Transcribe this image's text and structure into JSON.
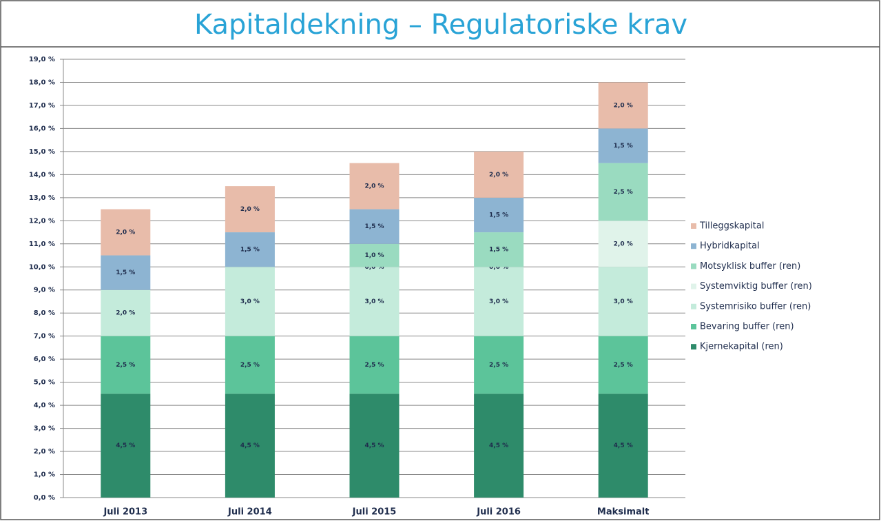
{
  "chart_data": {
    "type": "stacked_bar",
    "title": "Kapitaldekning – Regulatoriske krav",
    "categories": [
      "Juli 2013",
      "Juli 2014",
      "Juli 2015",
      "Juli 2016",
      "Maksimalt"
    ],
    "series": [
      {
        "name": "Kjernekapital (ren)",
        "color": "#2e8b6a",
        "values": [
          4.5,
          4.5,
          4.5,
          4.5,
          4.5
        ],
        "value_labels": [
          "4,5 %",
          "4,5 %",
          "4,5 %",
          "4,5 %",
          "4,5 %"
        ]
      },
      {
        "name": "Bevaring buffer (ren)",
        "color": "#5cc49a",
        "values": [
          2.5,
          2.5,
          2.5,
          2.5,
          2.5
        ],
        "value_labels": [
          "2,5 %",
          "2,5 %",
          "2,5 %",
          "2,5 %",
          "2,5 %"
        ]
      },
      {
        "name": "Systemrisiko buffer (ren)",
        "color": "#c4ebdb",
        "values": [
          2.0,
          3.0,
          3.0,
          3.0,
          3.0
        ],
        "value_labels": [
          "2,0 %",
          "3,0 %",
          "3,0 %",
          "3,0 %",
          "3,0 %"
        ]
      },
      {
        "name": "Systemviktig buffer (ren)",
        "color": "#e0f3ea",
        "values": [
          null,
          null,
          0.0,
          0.0,
          2.0
        ],
        "value_labels": [
          null,
          null,
          "0,0 %",
          "0,0 %",
          "2,0 %"
        ]
      },
      {
        "name": "Motsyklisk buffer (ren)",
        "color": "#9adbc0",
        "values": [
          null,
          null,
          1.0,
          1.5,
          2.5
        ],
        "value_labels": [
          null,
          null,
          "1,0 %",
          "1,5 %",
          "2,5 %"
        ]
      },
      {
        "name": "Hybridkapital",
        "color": "#8db4d2",
        "values": [
          1.5,
          1.5,
          1.5,
          1.5,
          1.5
        ],
        "value_labels": [
          "1,5 %",
          "1,5 %",
          "1,5 %",
          "1,5 %",
          "1,5 %"
        ]
      },
      {
        "name": "Tilleggskapital",
        "color": "#e8bcaa",
        "values": [
          2.0,
          2.0,
          2.0,
          2.0,
          2.0
        ],
        "value_labels": [
          "2,0 %",
          "2,0 %",
          "2,0 %",
          "2,0 %",
          "2,0 %"
        ]
      }
    ],
    "ylim": [
      0,
      19
    ],
    "yticks": [
      {
        "value": 0,
        "label": "0,0 %"
      },
      {
        "value": 1,
        "label": "1,0 %"
      },
      {
        "value": 2,
        "label": "2,0 %"
      },
      {
        "value": 3,
        "label": "3,0 %"
      },
      {
        "value": 4,
        "label": "4,0 %"
      },
      {
        "value": 5,
        "label": "5,0 %"
      },
      {
        "value": 6,
        "label": "6,0 %"
      },
      {
        "value": 7,
        "label": "7,0 %"
      },
      {
        "value": 8,
        "label": "8,0 %"
      },
      {
        "value": 9,
        "label": "9,0 %"
      },
      {
        "value": 10,
        "label": "10,0 %"
      },
      {
        "value": 11,
        "label": "11,0 %"
      },
      {
        "value": 12,
        "label": "12,0 %"
      },
      {
        "value": 13,
        "label": "13,0 %"
      },
      {
        "value": 14,
        "label": "14,0 %"
      },
      {
        "value": 15,
        "label": "15,0 %"
      },
      {
        "value": 16,
        "label": "16,0 %"
      },
      {
        "value": 17,
        "label": "17,0 %"
      },
      {
        "value": 18,
        "label": "18,0 %"
      },
      {
        "value": 19,
        "label": "19,0 %"
      }
    ],
    "grid": true,
    "legend": "right"
  }
}
